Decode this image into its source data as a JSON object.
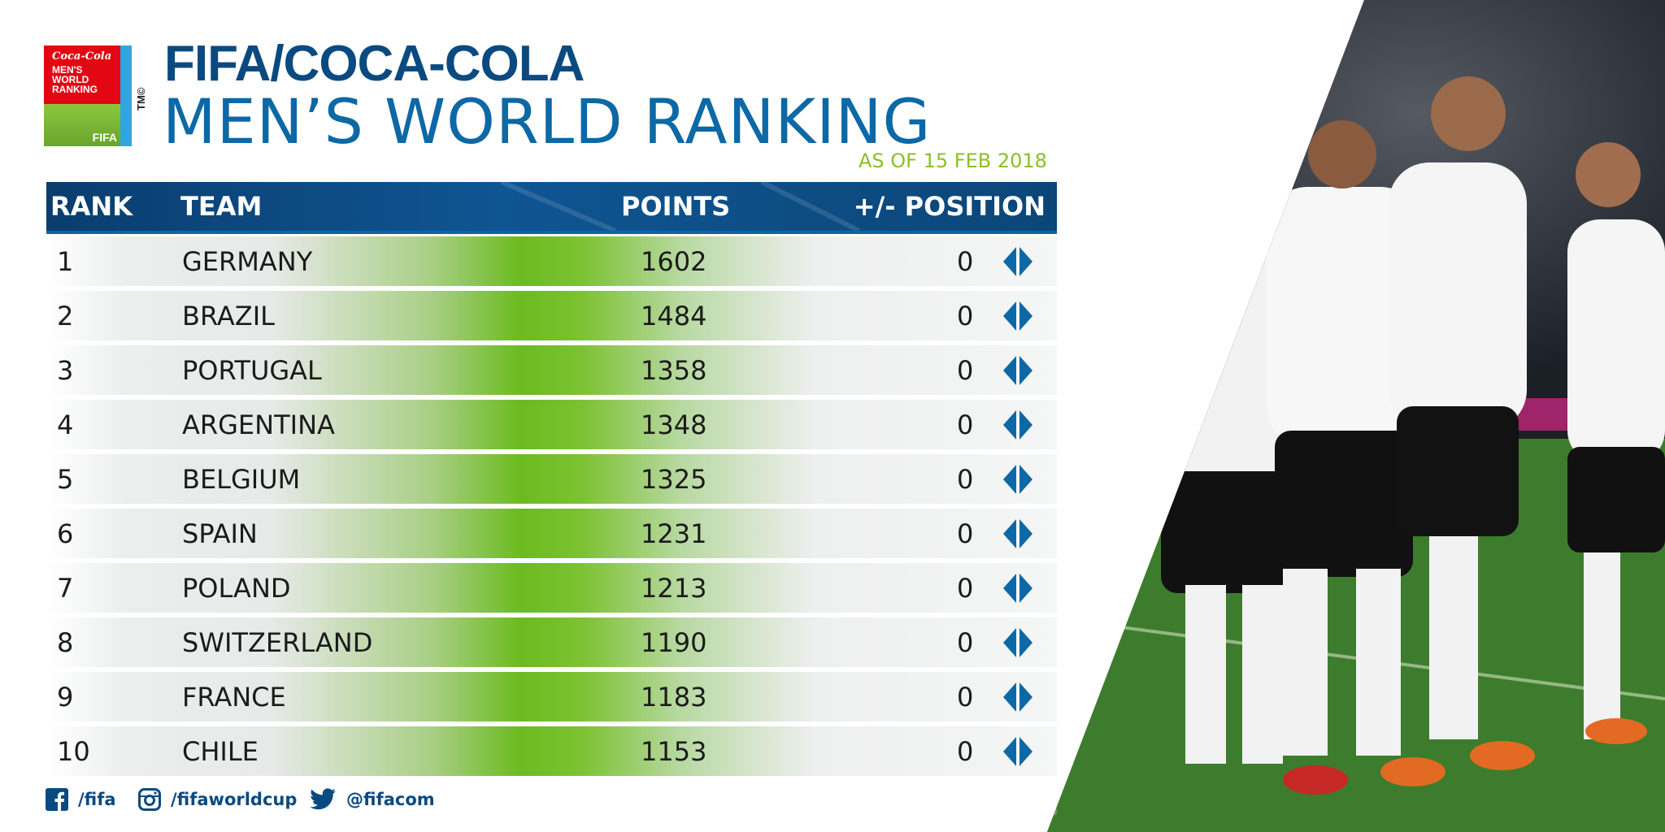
{
  "logo": {
    "brand_script": "Coca-Cola",
    "lines": [
      "MEN'S",
      "WORLD",
      "RANKING"
    ],
    "fifa": "FIFA",
    "tm": "TM©"
  },
  "title": {
    "line1": "FIFA/COCA-COLA",
    "line2": "MEN’S WORLD RANKING",
    "as_of": "AS OF 15 FEB 2018"
  },
  "table": {
    "headers": {
      "rank": "RANK",
      "team": "TEAM",
      "points": "POINTS",
      "position": "+/- POSITION"
    },
    "rows": [
      {
        "rank": "1",
        "team": "GERMANY",
        "points": "1602",
        "change": "0",
        "icon": "no-change-arrows-icon"
      },
      {
        "rank": "2",
        "team": "BRAZIL",
        "points": "1484",
        "change": "0",
        "icon": "no-change-arrows-icon"
      },
      {
        "rank": "3",
        "team": "PORTUGAL",
        "points": "1358",
        "change": "0",
        "icon": "no-change-arrows-icon"
      },
      {
        "rank": "4",
        "team": "ARGENTINA",
        "points": "1348",
        "change": "0",
        "icon": "no-change-arrows-icon"
      },
      {
        "rank": "5",
        "team": "BELGIUM",
        "points": "1325",
        "change": "0",
        "icon": "no-change-arrows-icon"
      },
      {
        "rank": "6",
        "team": "SPAIN",
        "points": "1231",
        "change": "0",
        "icon": "no-change-arrows-icon"
      },
      {
        "rank": "7",
        "team": "POLAND",
        "points": "1213",
        "change": "0",
        "icon": "no-change-arrows-icon"
      },
      {
        "rank": "8",
        "team": "SWITZERLAND",
        "points": "1190",
        "change": "0",
        "icon": "no-change-arrows-icon"
      },
      {
        "rank": "9",
        "team": "FRANCE",
        "points": "1183",
        "change": "0",
        "icon": "no-change-arrows-icon"
      },
      {
        "rank": "10",
        "team": "CHILE",
        "points": "1153",
        "change": "0",
        "icon": "no-change-arrows-icon"
      }
    ]
  },
  "social": [
    {
      "icon": "facebook-icon",
      "label": "/fifa"
    },
    {
      "icon": "instagram-icon",
      "label": "/fifaworldcup"
    },
    {
      "icon": "twitter-icon",
      "label": "@fifacom"
    }
  ],
  "colors": {
    "title_dark_blue": "#0b4a80",
    "title_blue": "#0d68a6",
    "as_of_green": "#8cbf26",
    "header_blue": "#0f5592",
    "row_green": "#6bbb1f",
    "arrow_blue": "#0d68a6"
  },
  "photo": {
    "icon": "players-celebrating-photo"
  }
}
